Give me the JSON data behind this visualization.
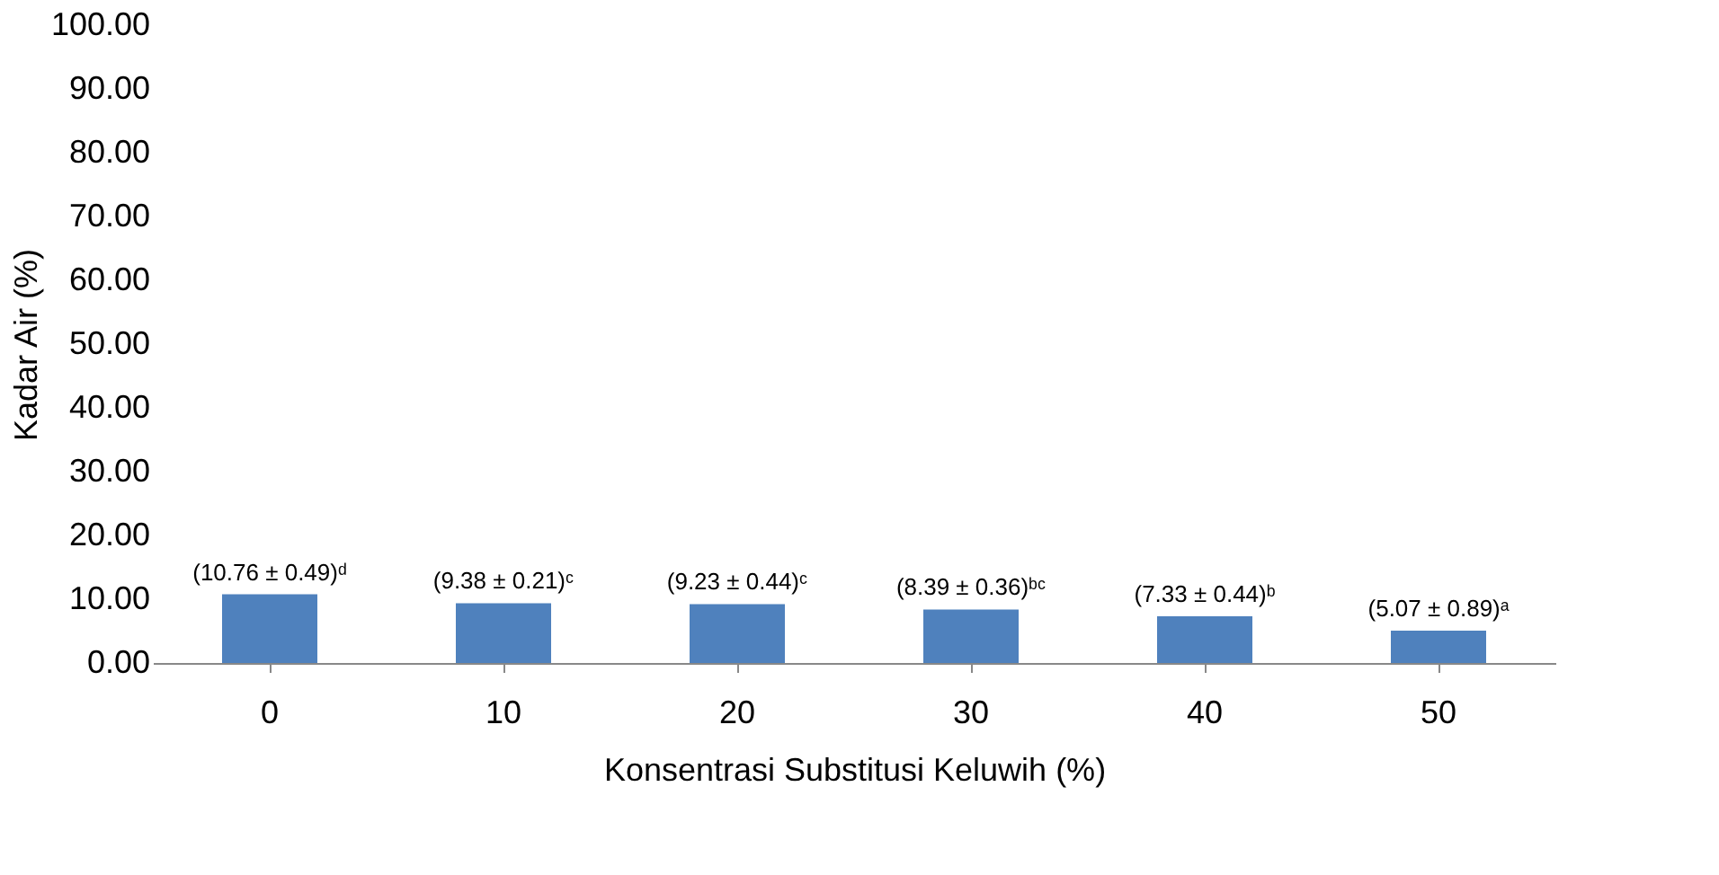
{
  "chart_data": {
    "type": "bar",
    "xlabel": "Konsentrasi Substitusi Keluwih (%)",
    "ylabel": "Kadar Air (%)",
    "categories": [
      "0",
      "10",
      "20",
      "30",
      "40",
      "50"
    ],
    "values": [
      10.76,
      9.38,
      9.23,
      8.39,
      7.33,
      5.07
    ],
    "value_labels": [
      "(10.76 ± 0.49)ᵈ",
      "(9.38 ±  0.21)ᶜ",
      "(9.23  ±  0.44)ᶜ",
      "(8.39 ±  0.36)ᵇᶜ",
      "(7.33 ±  0.44)ᵇ",
      "(5.07 ±  0.89)ᵃ"
    ],
    "color": "#4f81bd",
    "ylim": [
      0,
      100
    ],
    "yticks": [
      {
        "value": 0,
        "label": "0.00"
      },
      {
        "value": 10,
        "label": "10.00"
      },
      {
        "value": 20,
        "label": "20.00"
      },
      {
        "value": 30,
        "label": "30.00"
      },
      {
        "value": 40,
        "label": "40.00"
      },
      {
        "value": 50,
        "label": "50.00"
      },
      {
        "value": 60,
        "label": "60.00"
      },
      {
        "value": 70,
        "label": "70.00"
      },
      {
        "value": 80,
        "label": "80.00"
      },
      {
        "value": 90,
        "label": "90.00"
      },
      {
        "value": 100,
        "label": "100.00"
      }
    ],
    "grid": false
  }
}
